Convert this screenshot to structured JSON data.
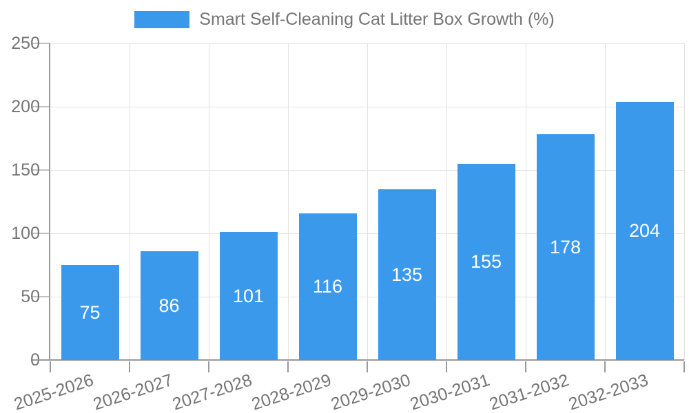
{
  "chart_data": {
    "type": "bar",
    "title": "Smart Self-Cleaning Cat Litter Box Growth (%)",
    "categories": [
      "2025-2026",
      "2026-2027",
      "2027-2028",
      "2028-2029",
      "2029-2030",
      "2030-2031",
      "2031-2032",
      "2032-2033"
    ],
    "values": [
      75,
      86,
      101,
      116,
      135,
      155,
      178,
      204
    ],
    "xlabel": "",
    "ylabel": "",
    "ylim": [
      0,
      250
    ],
    "yticks": [
      0,
      50,
      100,
      150,
      200,
      250
    ],
    "grid": true,
    "legend_position": "top-center",
    "bar_value_labels": "inside-center",
    "x_label_rotation_deg": -18,
    "colors": {
      "bar": "#3b99ec",
      "bar_label": "#ffffff",
      "axis": "#999999",
      "grid": "#e2e2e2",
      "y_tick_mark": "#c0c0c0",
      "tick_text": "#757575",
      "legend_text": "#757575",
      "background": "#ffffff"
    }
  }
}
